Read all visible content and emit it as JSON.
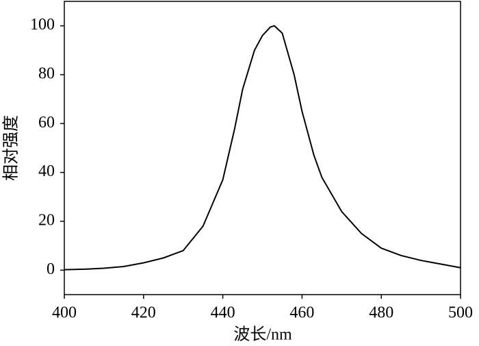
{
  "chart_data": {
    "type": "line",
    "x_label": "波长/nm",
    "y_label": "相对强度",
    "x": [
      400,
      405,
      410,
      415,
      420,
      425,
      430,
      435,
      440,
      443,
      445,
      448,
      450,
      452,
      453,
      455,
      458,
      460,
      463,
      465,
      470,
      475,
      480,
      485,
      490,
      495,
      500
    ],
    "series": [
      {
        "color": "#000000",
        "values": [
          0.2,
          0.4,
          0.8,
          1.5,
          3,
          5,
          8,
          18,
          37,
          58,
          74,
          90,
          96,
          99.5,
          100,
          97,
          80,
          65,
          47,
          38,
          24,
          15,
          9,
          6,
          4,
          2.5,
          1
        ]
      }
    ],
    "xlim": [
      400,
      500
    ],
    "xticks": [
      400,
      420,
      440,
      460,
      480,
      500
    ],
    "ylim": [
      -10,
      110
    ],
    "yticks": [
      0,
      20,
      40,
      60,
      80,
      100
    ]
  }
}
